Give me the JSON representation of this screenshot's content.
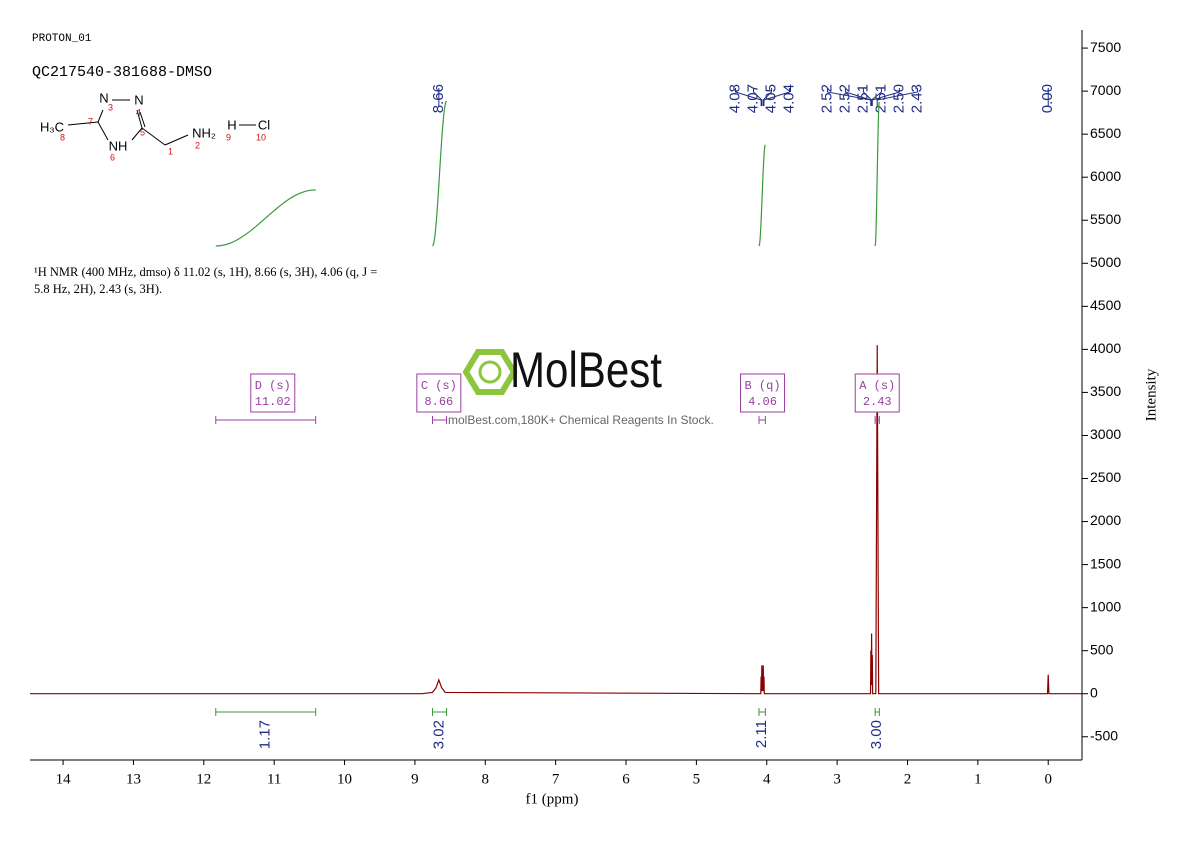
{
  "chart_data": {
    "type": "nmr",
    "experiment": "PROTON_01",
    "sample": "QC217540-381688-DMSO",
    "description": "¹H NMR (400 MHz, dmso) δ 11.02 (s, 1H), 8.66 (s, 3H), 4.06 (q, J = 5.8 Hz, 2H), 2.43 (s, 3H).",
    "molecule": {
      "atoms": [
        "N",
        "N",
        "H₃C",
        "NH",
        "NH₂",
        "H",
        "Cl"
      ],
      "numbers": [
        "3",
        "4",
        "7",
        "8",
        "5",
        "6",
        "1",
        "2",
        "9",
        "10"
      ]
    },
    "watermark": "MolBest",
    "watermark_caption": "molBest.com,180K+ Chemical Reagents In Stock.",
    "xlabel": "f1 (ppm)",
    "ylabel": "Intensity",
    "xlim": [
      14.47,
      -0.48
    ],
    "ylim": [
      -770,
      7710
    ],
    "xticks": [
      14,
      13,
      12,
      11,
      10,
      9,
      8,
      7,
      6,
      5,
      4,
      3,
      2,
      1,
      0
    ],
    "yticks": [
      -500,
      0,
      500,
      1000,
      1500,
      2000,
      2500,
      3000,
      3500,
      4000,
      4500,
      5000,
      5500,
      6000,
      6500,
      7000,
      7500
    ],
    "series": [
      {
        "name": "spectrum",
        "color": "#8b0000",
        "x": [
          14.47,
          8.9,
          8.75,
          8.7,
          8.66,
          8.62,
          8.57,
          4.12,
          4.085,
          4.08,
          4.075,
          4.07,
          4.06,
          4.05,
          4.045,
          4.04,
          4.035,
          2.56,
          2.525,
          2.52,
          2.515,
          2.51,
          2.505,
          2.5,
          2.495,
          2.45,
          2.43,
          2.41,
          0.01,
          0.0,
          -0.01,
          -0.48
        ],
        "values": [
          0,
          0,
          15,
          70,
          160,
          70,
          15,
          0,
          0,
          200,
          30,
          330,
          30,
          330,
          30,
          200,
          0,
          0,
          0,
          500,
          100,
          700,
          100,
          450,
          0,
          0,
          4050,
          0,
          0,
          220,
          0,
          0
        ]
      }
    ],
    "peak_picks": {
      "values": [
        8.66,
        4.08,
        4.07,
        4.05,
        4.04,
        2.52,
        2.52,
        2.51,
        2.51,
        2.5,
        2.43,
        0
      ],
      "value_labels": [
        "8.66",
        "4.08",
        "4.07",
        "4.05",
        "4.04",
        "2.52",
        "2.52",
        "2.51",
        "2.51",
        "2.50",
        "2.43",
        "0.00"
      ]
    },
    "multiplets": [
      {
        "name": "D (s)",
        "center": 11.02,
        "range": [
          11.83,
          10.41
        ],
        "integral": 1.17
      },
      {
        "name": "C (s)",
        "center": 8.66,
        "range": [
          8.75,
          8.55
        ],
        "integral": 3.02
      },
      {
        "name": "B (q)",
        "center": 4.06,
        "range": [
          4.11,
          4.02
        ],
        "integral": 2.11
      },
      {
        "name": "A (s)",
        "center": 2.43,
        "range": [
          2.46,
          2.4
        ],
        "integral": 3.0,
        "integral_label": "3.00"
      }
    ]
  }
}
